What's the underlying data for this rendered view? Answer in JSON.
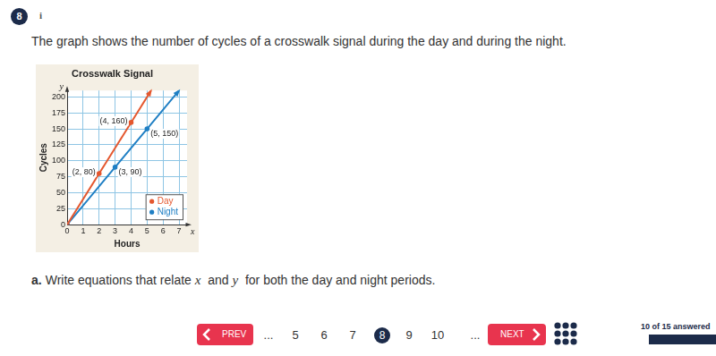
{
  "question": {
    "number": "8",
    "info": "i",
    "prompt": "The graph shows the number of cycles of a crosswalk signal during the day and during the night."
  },
  "chart_data": {
    "type": "line",
    "title": "Crosswalk Signal",
    "x_label": "Hours",
    "y_label": "Cycles",
    "axis_symbols": {
      "x": "x",
      "y": "y"
    },
    "xlim": [
      0,
      7.5
    ],
    "xticks": [
      0,
      1,
      2,
      3,
      4,
      5,
      6,
      7
    ],
    "ylim": [
      0,
      210
    ],
    "yticks": [
      0,
      25,
      50,
      75,
      100,
      125,
      150,
      175,
      200
    ],
    "grid": true,
    "legend": "lower right",
    "marker": "circle",
    "series": [
      {
        "name": "Day",
        "color": "#e4572e",
        "x": [
          0,
          2,
          4,
          5.25
        ],
        "values": [
          0,
          80,
          160,
          210
        ],
        "marked_x": [
          0,
          2,
          4
        ],
        "marked_values": [
          0,
          80,
          160
        ],
        "point_labels": [
          null,
          "(2, 80)",
          "(4, 160)"
        ]
      },
      {
        "name": "Night",
        "color": "#1f7fc4",
        "x": [
          0,
          3,
          5,
          7
        ],
        "values": [
          0,
          90,
          150,
          210
        ],
        "marked_x": [
          0,
          3,
          5
        ],
        "marked_values": [
          0,
          90,
          150
        ],
        "point_labels": [
          null,
          "(3, 90)",
          "(5, 150)"
        ]
      }
    ]
  },
  "part_a": {
    "label": "a.",
    "text": [
      {
        "text": "Write equations that relate "
      },
      {
        "text": "x",
        "italic": true
      },
      {
        "text": "  and "
      },
      {
        "text": "y",
        "italic": true
      },
      {
        "text": "  for both the day and night periods."
      }
    ]
  },
  "navigation": {
    "prev": "PREV",
    "next": "NEXT",
    "pages": [
      "...",
      "5",
      "6",
      "7",
      "8",
      "9",
      "10",
      "..."
    ],
    "current": "8",
    "progress": "10 of 15 answered"
  }
}
